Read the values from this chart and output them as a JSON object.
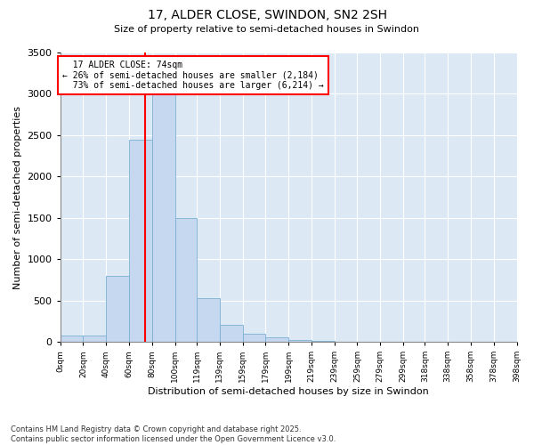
{
  "title": "17, ALDER CLOSE, SWINDON, SN2 2SH",
  "subtitle": "Size of property relative to semi-detached houses in Swindon",
  "xlabel": "Distribution of semi-detached houses by size in Swindon",
  "ylabel": "Number of semi-detached properties",
  "bar_color": "#c5d8f0",
  "bar_edge_color": "#7aafd4",
  "bg_color": "#dce9f5",
  "property_size": 74,
  "property_label": "17 ALDER CLOSE: 74sqm",
  "pct_smaller": 26,
  "pct_larger": 73,
  "n_smaller": 2184,
  "n_larger": 6214,
  "vline_color": "red",
  "bins": [
    0,
    20,
    40,
    60,
    80,
    100,
    119,
    139,
    159,
    179,
    199,
    219,
    239,
    259,
    279,
    299,
    318,
    338,
    358,
    378,
    398
  ],
  "bin_labels": [
    "0sqm",
    "20sqm",
    "40sqm",
    "60sqm",
    "80sqm",
    "100sqm",
    "119sqm",
    "139sqm",
    "159sqm",
    "179sqm",
    "199sqm",
    "219sqm",
    "239sqm",
    "259sqm",
    "279sqm",
    "299sqm",
    "318sqm",
    "338sqm",
    "358sqm",
    "378sqm",
    "398sqm"
  ],
  "counts": [
    75,
    75,
    800,
    2450,
    3250,
    1500,
    525,
    200,
    100,
    50,
    25,
    10,
    5,
    3,
    2,
    1,
    1,
    0,
    0,
    0
  ],
  "ylim": [
    0,
    3500
  ],
  "yticks": [
    0,
    500,
    1000,
    1500,
    2000,
    2500,
    3000,
    3500
  ],
  "footnote": "Contains HM Land Registry data © Crown copyright and database right 2025.\nContains public sector information licensed under the Open Government Licence v3.0.",
  "figsize": [
    6.0,
    5.0
  ],
  "dpi": 100
}
